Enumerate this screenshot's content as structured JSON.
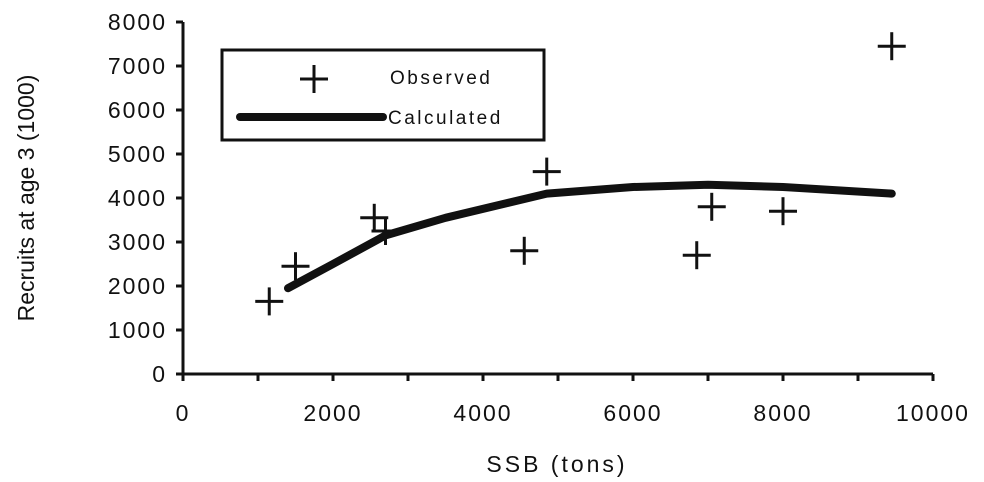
{
  "chart_data": {
    "type": "scatter",
    "xlabel": "SSB (tons)",
    "ylabel": "Recruits at age 3 (1000)",
    "xlim": [
      0,
      10000
    ],
    "ylim": [
      0,
      8000
    ],
    "x_ticks": [
      "0",
      "2000",
      "4000",
      "6000",
      "8000",
      "10000"
    ],
    "y_ticks": [
      "0",
      "1000",
      "2000",
      "3000",
      "4000",
      "5000",
      "6000",
      "7000",
      "8000"
    ],
    "grid": false,
    "legend_position": "top-left",
    "series": [
      {
        "name": "Observed",
        "marker": "plus",
        "points": [
          {
            "x": 1150,
            "y": 1650
          },
          {
            "x": 1500,
            "y": 2450
          },
          {
            "x": 2550,
            "y": 3550
          },
          {
            "x": 2700,
            "y": 3250
          },
          {
            "x": 4550,
            "y": 2800
          },
          {
            "x": 4850,
            "y": 4600
          },
          {
            "x": 6850,
            "y": 2700
          },
          {
            "x": 7050,
            "y": 3800
          },
          {
            "x": 8000,
            "y": 3700
          },
          {
            "x": 9450,
            "y": 7450
          }
        ]
      },
      {
        "name": "Calculated",
        "type": "line",
        "points": [
          {
            "x": 1400,
            "y": 1950
          },
          {
            "x": 2000,
            "y": 2500
          },
          {
            "x": 2700,
            "y": 3150
          },
          {
            "x": 3500,
            "y": 3550
          },
          {
            "x": 4850,
            "y": 4100
          },
          {
            "x": 6000,
            "y": 4250
          },
          {
            "x": 7000,
            "y": 4300
          },
          {
            "x": 8000,
            "y": 4250
          },
          {
            "x": 9450,
            "y": 4100
          }
        ]
      }
    ]
  }
}
